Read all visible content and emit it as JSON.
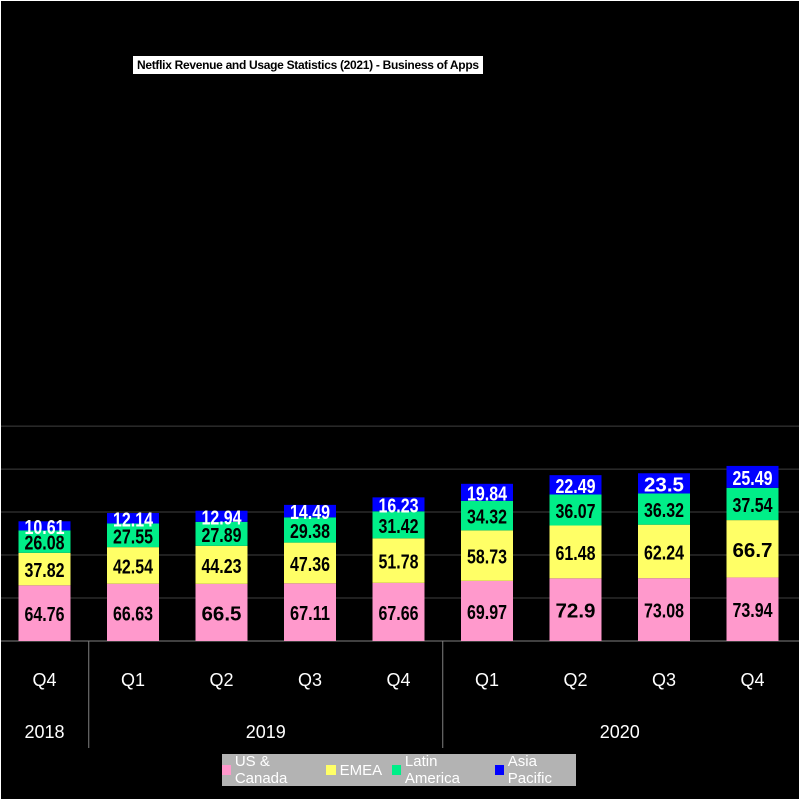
{
  "title": "Netflix Revenue and Usage Statistics (2021) - Business of Apps",
  "chart_data": {
    "type": "bar",
    "stacked": true,
    "categories": [
      "Q4",
      "Q1",
      "Q2",
      "Q3",
      "Q4",
      "Q1",
      "Q2",
      "Q3",
      "Q4"
    ],
    "year_groups": [
      {
        "label": "2018",
        "count": 1
      },
      {
        "label": "2019",
        "count": 4
      },
      {
        "label": "2020",
        "count": 4
      }
    ],
    "series": [
      {
        "name": "US & Canada",
        "color": "#ff99cc",
        "values": [
          64.76,
          66.63,
          66.5,
          67.11,
          67.66,
          69.97,
          72.9,
          73.08,
          73.94
        ]
      },
      {
        "name": "EMEA",
        "color": "#ffff66",
        "values": [
          37.82,
          42.54,
          44.23,
          47.36,
          51.78,
          58.73,
          61.48,
          62.24,
          66.7
        ]
      },
      {
        "name": "Latin America",
        "color": "#00ee88",
        "values": [
          26.08,
          27.55,
          27.89,
          29.38,
          31.42,
          34.32,
          36.07,
          36.32,
          37.54
        ]
      },
      {
        "name": "Asia Pacific",
        "color": "#0000ff",
        "values": [
          10.61,
          12.14,
          12.94,
          14.49,
          16.23,
          19.84,
          22.49,
          23.5,
          25.49
        ]
      }
    ],
    "ylim": [
      0,
      250
    ],
    "grid": true,
    "legend_position": "bottom",
    "label_colors": {
      "dark": "#000000",
      "light": "#ffffff"
    }
  }
}
